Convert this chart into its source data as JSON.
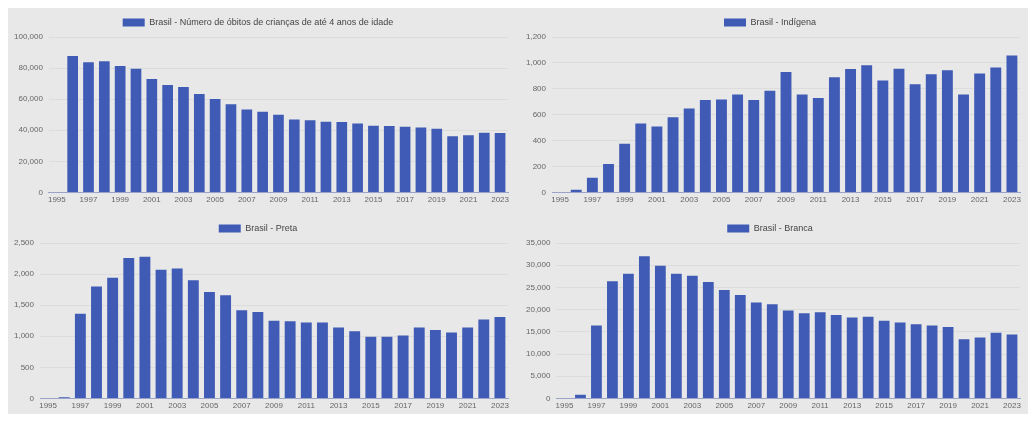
{
  "chart_data": [
    {
      "type": "bar",
      "categories": [
        "1995",
        null,
        "1997",
        null,
        "1999",
        null,
        "2001",
        null,
        "2003",
        null,
        "2005",
        null,
        "2007",
        null,
        "2009",
        null,
        "2011",
        null,
        "2013",
        null,
        "2015",
        null,
        "2017",
        null,
        "2019",
        null,
        "2021",
        null,
        "2023"
      ],
      "series": [
        {
          "name": "Brasil - Número de óbitos de crianças de até 4 anos de idade",
          "color": "#3f5bb5",
          "values": [
            0,
            87700,
            83700,
            84400,
            81400,
            79500,
            72900,
            69100,
            67900,
            63400,
            60100,
            56800,
            53300,
            51900,
            50000,
            46900,
            46500,
            45500,
            45300,
            44300,
            42900,
            42700,
            42200,
            41700,
            41000,
            36100,
            36800,
            38400,
            38200
          ]
        }
      ],
      "ylim": [
        0,
        100000
      ],
      "yticks": [
        {
          "value": 0,
          "label": "0"
        },
        {
          "value": 20000,
          "label": "20,000"
        },
        {
          "value": 40000,
          "label": "40,000"
        },
        {
          "value": 60000,
          "label": "60,000"
        },
        {
          "value": 80000,
          "label": "80,000"
        },
        {
          "value": 100000,
          "label": "100,000"
        }
      ],
      "grid": "y",
      "legend": "top"
    },
    {
      "type": "bar",
      "categories": [
        "1995",
        null,
        "1997",
        null,
        "1999",
        null,
        "2001",
        null,
        "2003",
        null,
        "2005",
        null,
        "2007",
        null,
        "2009",
        null,
        "2011",
        null,
        "2013",
        null,
        "2015",
        null,
        "2017",
        null,
        "2019",
        null,
        "2021",
        null,
        "2023"
      ],
      "series": [
        {
          "name": "Brasil - Indígena",
          "color": "#3f5bb5",
          "values": [
            null,
            20,
            114,
            219,
            375,
            532,
            509,
            580,
            648,
            714,
            717,
            756,
            714,
            785,
            930,
            756,
            728,
            890,
            953,
            981,
            864,
            955,
            836,
            913,
            944,
            756,
            918,
            964,
            1058
          ]
        }
      ],
      "ylim": [
        0,
        1200
      ],
      "yticks": [
        {
          "value": 0,
          "label": "0"
        },
        {
          "value": 200,
          "label": "200"
        },
        {
          "value": 400,
          "label": "400"
        },
        {
          "value": 600,
          "label": "600"
        },
        {
          "value": 800,
          "label": "800"
        },
        {
          "value": 1000,
          "label": "1,000"
        },
        {
          "value": 1200,
          "label": "1,200"
        }
      ],
      "grid": "y",
      "legend": "top"
    },
    {
      "type": "bar",
      "categories": [
        "1995",
        null,
        "1997",
        null,
        "1999",
        null,
        "2001",
        null,
        "2003",
        null,
        "2005",
        null,
        "2007",
        null,
        "2009",
        null,
        "2011",
        null,
        "2013",
        null,
        "2015",
        null,
        "2017",
        null,
        "2019",
        null,
        "2021",
        null,
        "2023"
      ],
      "series": [
        {
          "name": "Brasil - Preta",
          "color": "#3f5bb5",
          "values": [
            null,
            20,
            1360,
            1800,
            1940,
            2260,
            2280,
            2070,
            2090,
            1900,
            1710,
            1660,
            1420,
            1390,
            1250,
            1240,
            1220,
            1220,
            1140,
            1080,
            990,
            990,
            1010,
            1140,
            1100,
            1060,
            1140,
            1270,
            1310
          ]
        }
      ],
      "ylim": [
        0,
        2500
      ],
      "yticks": [
        {
          "value": 0,
          "label": "0"
        },
        {
          "value": 500,
          "label": "500"
        },
        {
          "value": 1000,
          "label": "1,000"
        },
        {
          "value": 1500,
          "label": "1,500"
        },
        {
          "value": 2000,
          "label": "2,000"
        },
        {
          "value": 2500,
          "label": "2,500"
        }
      ],
      "grid": "y",
      "legend": "top"
    },
    {
      "type": "bar",
      "categories": [
        "1995",
        null,
        "1997",
        null,
        "1999",
        null,
        "2001",
        null,
        "2003",
        null,
        "2005",
        null,
        "2007",
        null,
        "2009",
        null,
        "2011",
        null,
        "2013",
        null,
        "2015",
        null,
        "2017",
        null,
        "2019",
        null,
        "2021",
        null,
        "2023"
      ],
      "series": [
        {
          "name": "Brasil - Branca",
          "color": "#3f5bb5",
          "values": [
            0,
            800,
            16400,
            26400,
            28100,
            32000,
            29900,
            28100,
            27600,
            26200,
            24400,
            23300,
            21600,
            21200,
            19800,
            19200,
            19400,
            18800,
            18200,
            18400,
            17500,
            17100,
            16700,
            16400,
            16100,
            13300,
            13700,
            14800,
            14400
          ]
        }
      ],
      "ylim": [
        0,
        35000
      ],
      "yticks": [
        {
          "value": 0,
          "label": "0"
        },
        {
          "value": 5000,
          "label": "5,000"
        },
        {
          "value": 10000,
          "label": "10,000"
        },
        {
          "value": 15000,
          "label": "15,000"
        },
        {
          "value": 20000,
          "label": "20,000"
        },
        {
          "value": 25000,
          "label": "25,000"
        },
        {
          "value": 30000,
          "label": "30,000"
        },
        {
          "value": 35000,
          "label": "35,000"
        }
      ],
      "grid": "y",
      "legend": "top"
    }
  ]
}
